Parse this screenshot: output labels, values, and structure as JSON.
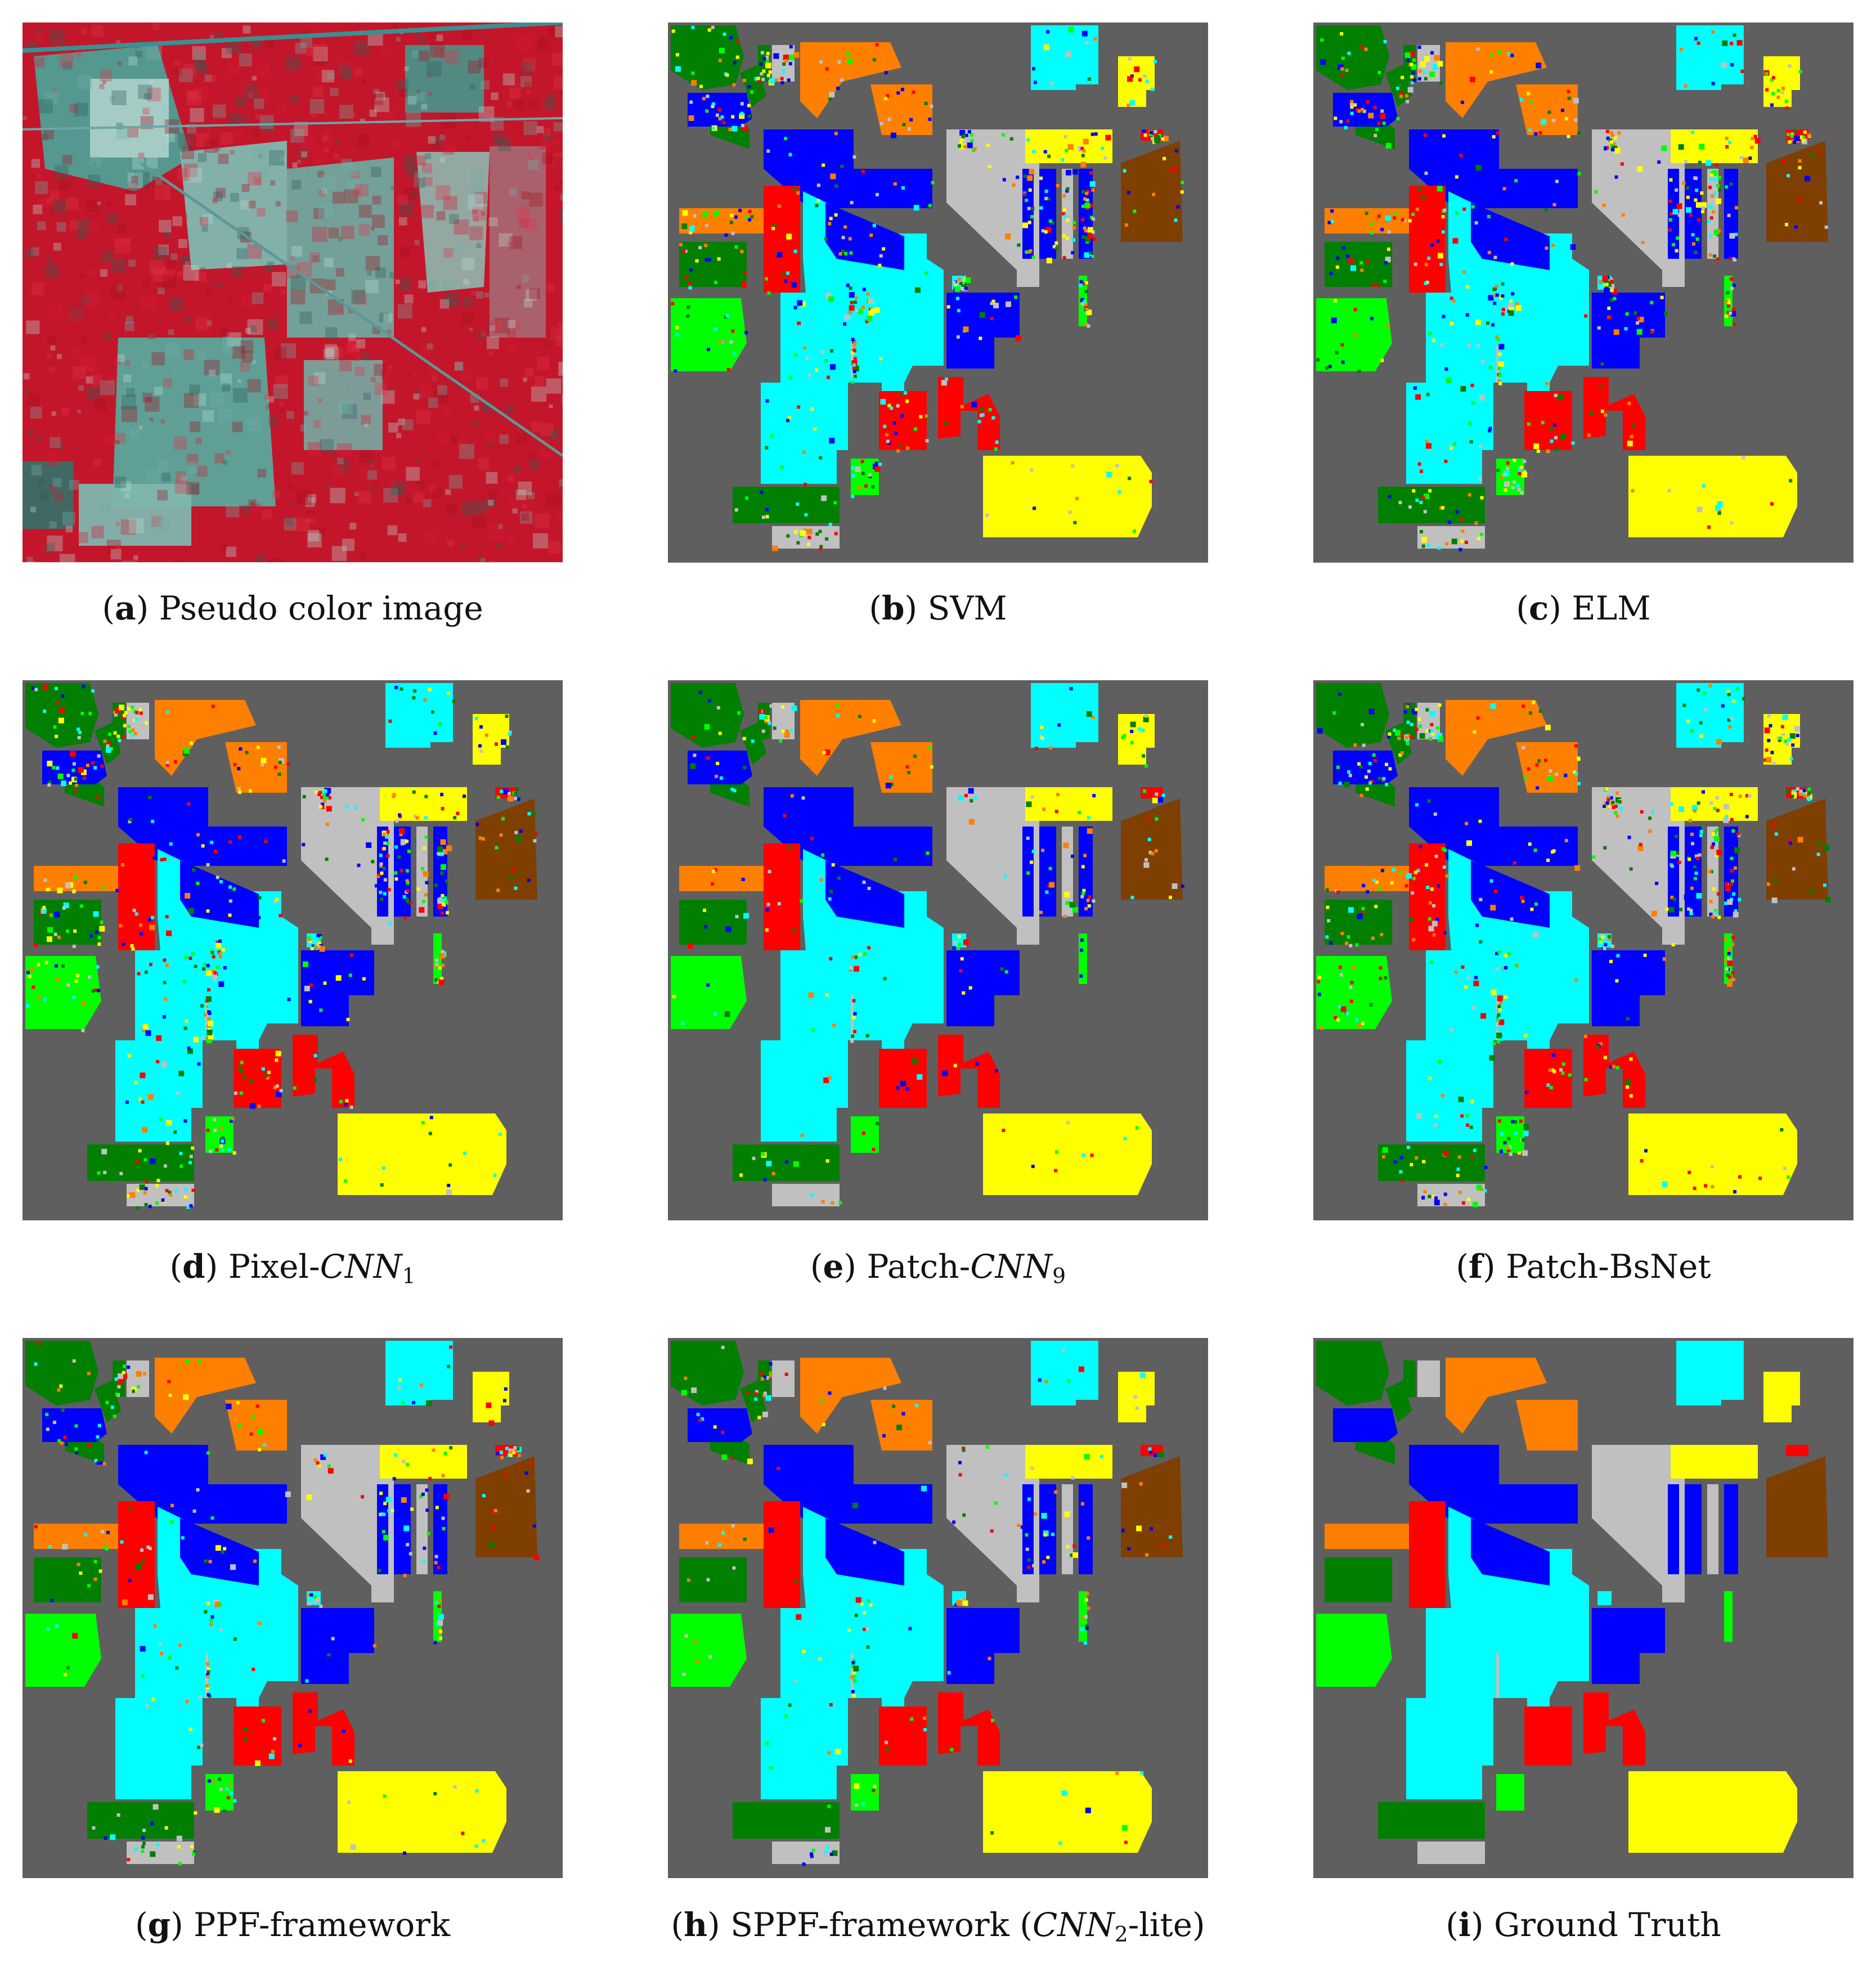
{
  "figure": {
    "panels": [
      {
        "id": "a",
        "title": "Pseudo color image",
        "kind": "pseudo"
      },
      {
        "id": "b",
        "title": "SVM",
        "kind": "map",
        "noise": 0.3
      },
      {
        "id": "c",
        "title": "ELM",
        "kind": "map",
        "noise": 0.28
      },
      {
        "id": "d",
        "title_pre": "Pixel-",
        "title_it": "CNN",
        "title_sub": "1",
        "title_post": "",
        "kind": "map",
        "noise": 0.3
      },
      {
        "id": "e",
        "title_pre": "Patch-",
        "title_it": "CNN",
        "title_sub": "9",
        "title_post": "",
        "kind": "map",
        "noise": 0.12
      },
      {
        "id": "f",
        "title": "Patch-BsNet",
        "kind": "map",
        "noise": 0.28
      },
      {
        "id": "g",
        "title": "PPF-framework",
        "kind": "map",
        "noise": 0.15
      },
      {
        "id": "h",
        "title_pre": "SPPF-framework (",
        "title_it": "CNN",
        "title_sub": "2",
        "title_post": "-lite)",
        "kind": "map",
        "noise": 0.1
      },
      {
        "id": "i",
        "title": "Ground Truth",
        "kind": "map",
        "noise": 0.0
      }
    ],
    "colors": {
      "background": "#5f5f5f",
      "corn_notill": "#0000ff",
      "corn_mintill": "#ff7f00",
      "grass_pasture": "#c0c0c0",
      "soybean_mintill": "#00ffff",
      "woods": "#ffff00",
      "hay": "#ff0000",
      "wheat": "#00ff00",
      "trees": "#007f00",
      "buildings": "#7f3f00"
    }
  }
}
